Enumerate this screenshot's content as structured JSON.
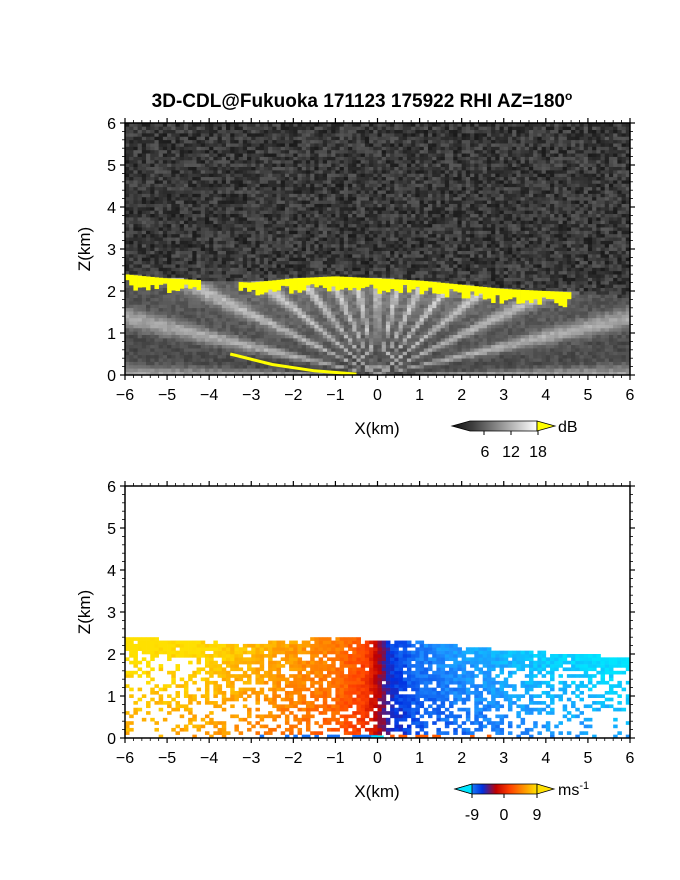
{
  "chart_data": [
    {
      "type": "heatmap",
      "title": "3D-CDL@Fukuoka 171123 175922 RHI AZ=180",
      "title_superscript": "o",
      "xlabel": "X(km)",
      "ylabel": "Z(km)",
      "xlim": [
        -6,
        6
      ],
      "ylim": [
        0,
        6
      ],
      "xticks": [
        "-6",
        "-5",
        "-4",
        "-3",
        "-2",
        "-1",
        "0",
        "1",
        "2",
        "3",
        "4",
        "5",
        "6"
      ],
      "yticks": [
        "0",
        "1",
        "2",
        "3",
        "4",
        "5",
        "6"
      ],
      "colorbar": {
        "unit": "dB",
        "ticks": [
          "6",
          "12",
          "18"
        ],
        "colors": [
          "#101010",
          "#404040",
          "#808080",
          "#c0c0c0",
          "#ffffff",
          "#ffff00"
        ]
      },
      "background_noise": "#303030",
      "layer_top": [
        [
          -6,
          2.4
        ],
        [
          -5,
          2.3
        ],
        [
          -4,
          2.25
        ],
        [
          -3,
          2.2
        ],
        [
          -2,
          2.3
        ],
        [
          -1,
          2.35
        ],
        [
          0,
          2.3
        ],
        [
          1,
          2.25
        ],
        [
          2,
          2.15
        ],
        [
          3,
          2.05
        ],
        [
          4,
          2.0
        ],
        [
          5,
          1.95
        ],
        [
          6,
          1.85
        ]
      ],
      "strong_echo_segments": [
        [
          -6,
          -4.2,
          2.25
        ],
        [
          -3.3,
          0,
          2.25
        ],
        [
          0,
          4.6,
          2.1
        ]
      ],
      "ground_echo": [
        [
          -3.5,
          0.5
        ],
        [
          -2.5,
          0.25
        ],
        [
          -1.5,
          0.1
        ],
        [
          -0.5,
          0.02
        ]
      ],
      "grid": false,
      "legend": "below-right"
    },
    {
      "type": "heatmap",
      "title": "",
      "xlabel": "X(km)",
      "ylabel": "Z(km)",
      "xlim": [
        -6,
        6
      ],
      "ylim": [
        0,
        6
      ],
      "xticks": [
        "-6",
        "-5",
        "-4",
        "-3",
        "-2",
        "-1",
        "0",
        "1",
        "2",
        "3",
        "4",
        "5",
        "6"
      ],
      "yticks": [
        "0",
        "1",
        "2",
        "3",
        "4",
        "5",
        "6"
      ],
      "colorbar": {
        "unit": "ms",
        "unit_superscript": "-1",
        "ticks": [
          "-9",
          "0",
          "9"
        ],
        "range": [
          -9,
          9
        ],
        "colors": [
          "#00e5ff",
          "#1e90ff",
          "#0030e0",
          "#c00000",
          "#ff4000",
          "#ff9000",
          "#ffe000"
        ]
      },
      "velocity_profile": [
        [
          -6,
          9
        ],
        [
          -4,
          8
        ],
        [
          -2,
          6
        ],
        [
          -1,
          5
        ],
        [
          -0.3,
          3
        ],
        [
          0,
          0
        ],
        [
          0.3,
          -3
        ],
        [
          1,
          -5
        ],
        [
          2,
          -6
        ],
        [
          4,
          -7.5
        ],
        [
          6,
          -8.5
        ]
      ],
      "grid": false,
      "legend": "below-right"
    }
  ]
}
